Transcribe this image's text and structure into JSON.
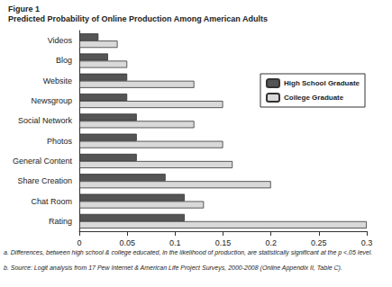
{
  "chart_data": {
    "type": "bar",
    "orientation": "horizontal",
    "title": "Figure 1",
    "subtitle": "Predicted Probability of Online Production Among American Adults",
    "categories": [
      "Videos",
      "Blog",
      "Website",
      "Newsgroup",
      "Social Network",
      "Photos",
      "General Content",
      "Share Creation",
      "Chat Room",
      "Rating"
    ],
    "series": [
      {
        "name": "High School Graduate",
        "color": "#555555",
        "values": [
          0.02,
          0.03,
          0.05,
          0.05,
          0.06,
          0.06,
          0.06,
          0.09,
          0.11,
          0.11
        ]
      },
      {
        "name": "College Graduate",
        "color": "#d9d9d9",
        "values": [
          0.04,
          0.05,
          0.12,
          0.15,
          0.12,
          0.15,
          0.16,
          0.2,
          0.13,
          0.3
        ]
      }
    ],
    "xlim": [
      0,
      0.3
    ],
    "xticks": [
      0,
      0.05,
      0.1,
      0.15,
      0.2,
      0.25,
      0.3
    ],
    "grid": false,
    "legend": "right",
    "annotations": [
      "a. Differences, between high school & college educated, in the likelihood of production, are statistically significant at the p <.05 level.",
      "b. Source: Logit analysis from 17 Pew Internet & American Life Project Surveys, 2000-2008 (Online Appendix II, Table C)."
    ]
  }
}
